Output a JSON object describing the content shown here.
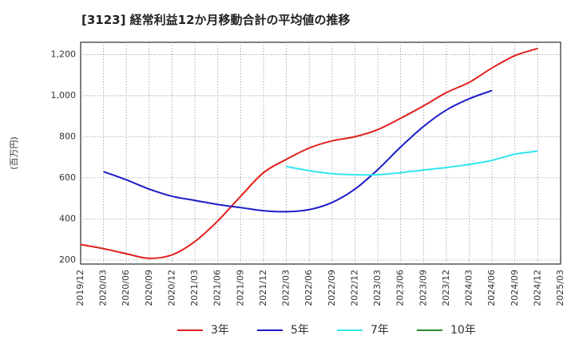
{
  "chart_data": {
    "type": "line",
    "title": "[3123]  経常利益12か月移動合計の平均値の推移",
    "ylabel": "(百万円)",
    "xlabel": "",
    "ylim": [
      180,
      1260
    ],
    "y_ticks": [
      200,
      400,
      600,
      800,
      1000,
      1200
    ],
    "y_tick_labels": [
      "200",
      "400",
      "600",
      "800",
      "1,000",
      "1,200"
    ],
    "x_tick_labels": [
      "2019/12",
      "2020/03",
      "2020/06",
      "2020/09",
      "2020/12",
      "2021/03",
      "2021/06",
      "2021/09",
      "2021/12",
      "2022/03",
      "2022/06",
      "2022/09",
      "2022/12",
      "2023/03",
      "2023/06",
      "2023/09",
      "2023/12",
      "2024/03",
      "2024/06",
      "2024/09",
      "2024/12",
      "2025/03"
    ],
    "grid": true,
    "legend_position": "bottom",
    "series": [
      {
        "name": "3年",
        "color": "#e0201b",
        "start_index": 0,
        "values": [
          275,
          255,
          230,
          208,
          225,
          290,
          390,
          510,
          625,
          690,
          745,
          780,
          800,
          835,
          890,
          950,
          1015,
          1065,
          1135,
          1195,
          1230
        ]
      },
      {
        "name": "5年",
        "color": "#1c1cc8",
        "start_index": 1,
        "values": [
          630,
          590,
          545,
          510,
          490,
          470,
          455,
          440,
          435,
          445,
          480,
          545,
          640,
          750,
          850,
          930,
          985,
          1025
        ]
      },
      {
        "name": "7年",
        "color": "#33e5f0",
        "start_index": 9,
        "values": [
          655,
          635,
          620,
          615,
          615,
          625,
          638,
          650,
          665,
          685,
          715,
          730
        ]
      },
      {
        "name": "10年",
        "color": "#2a8a2a",
        "start_index": 0,
        "values": []
      }
    ]
  }
}
